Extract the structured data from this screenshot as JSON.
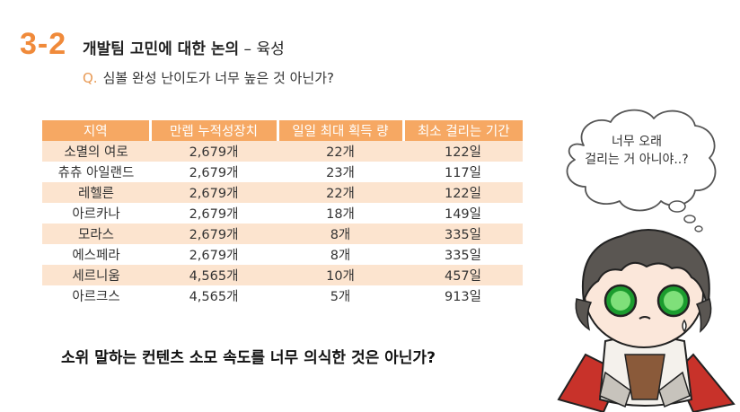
{
  "header": {
    "section_number": "3-2",
    "title": "개발팀 고민에 대한 논의",
    "title_dash": " – ",
    "subtitle": "육성"
  },
  "question": {
    "marker": "Q.",
    "text": "심볼 완성 난이도가 너무 높은 것 아닌가?"
  },
  "table": {
    "headers": [
      "지역",
      "만렙 누적성장치",
      "일일 최대 획득 량",
      "최소 걸리는 기간"
    ],
    "rows": [
      [
        "소멸의 여로",
        "2,679개",
        "22개",
        "122일"
      ],
      [
        "츄츄 아일랜드",
        "2,679개",
        "23개",
        "117일"
      ],
      [
        "레헬른",
        "2,679개",
        "22개",
        "122일"
      ],
      [
        "아르카나",
        "2,679개",
        "18개",
        "149일"
      ],
      [
        "모라스",
        "2,679개",
        "8개",
        "335일"
      ],
      [
        "에스페라",
        "2,679개",
        "8개",
        "335일"
      ],
      [
        "세르니움",
        "4,565개",
        "10개",
        "457일"
      ],
      [
        "아르크스",
        "4,565개",
        "5개",
        "913일"
      ]
    ]
  },
  "bubble": {
    "line1": "너무 오래",
    "line2": "걸리는 거 아니야..?"
  },
  "bottom_question": "소위 말하는 컨텐츠 소모 속도를 너무 의식한 것은 아닌가?",
  "colors": {
    "accent": "#f08a3a",
    "table_header": "#f6a863",
    "table_stripe": "#fce4cf"
  },
  "icons": {
    "character": "chibi-character-illustration"
  }
}
